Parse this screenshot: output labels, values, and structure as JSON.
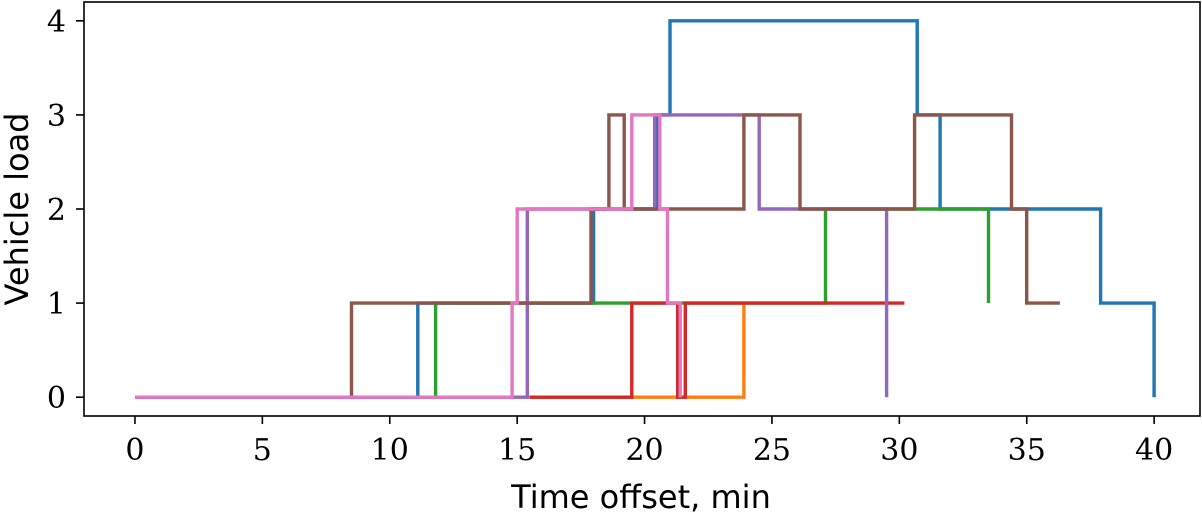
{
  "chart_data": {
    "type": "line",
    "step": true,
    "xlabel": "Time offset, min",
    "ylabel": "Vehicle load",
    "xlim": [
      -2.0,
      41.8
    ],
    "ylim": [
      -0.2,
      4.2
    ],
    "xticks": [
      0,
      5,
      10,
      15,
      20,
      25,
      30,
      35,
      40
    ],
    "yticks": [
      0,
      1,
      2,
      3,
      4
    ],
    "grid": false,
    "legend": "none",
    "series": [
      {
        "color": "#1f77b4",
        "points": [
          [
            0,
            0
          ],
          [
            11.1,
            0
          ],
          [
            11.1,
            1
          ],
          [
            18.0,
            1
          ],
          [
            18.0,
            2
          ],
          [
            20.5,
            2
          ],
          [
            20.5,
            3
          ],
          [
            21.0,
            3
          ],
          [
            21.0,
            4
          ],
          [
            30.7,
            4
          ],
          [
            30.7,
            3
          ],
          [
            31.6,
            3
          ],
          [
            31.6,
            2
          ],
          [
            37.9,
            2
          ],
          [
            37.9,
            1
          ],
          [
            40.0,
            1
          ],
          [
            40.0,
            0
          ]
        ]
      },
      {
        "color": "#ff7f0e",
        "points": [
          [
            0,
            0
          ],
          [
            23.9,
            0
          ],
          [
            23.9,
            1
          ]
        ]
      },
      {
        "color": "#2ca02c",
        "points": [
          [
            0,
            0
          ],
          [
            11.8,
            0
          ],
          [
            11.8,
            1
          ],
          [
            17.9,
            1
          ],
          [
            17.9,
            1
          ],
          [
            27.1,
            1
          ],
          [
            27.1,
            2
          ],
          [
            33.5,
            2
          ],
          [
            33.5,
            1
          ]
        ]
      },
      {
        "color": "#d62728",
        "points": [
          [
            15.5,
            0
          ],
          [
            19.5,
            0
          ],
          [
            19.5,
            1
          ],
          [
            21.3,
            1
          ],
          [
            21.3,
            0
          ],
          [
            21.6,
            0
          ],
          [
            21.6,
            1
          ],
          [
            30.2,
            1
          ]
        ]
      },
      {
        "color": "#9467bd",
        "points": [
          [
            0,
            0
          ],
          [
            15.4,
            0
          ],
          [
            15.4,
            2
          ],
          [
            20.4,
            2
          ],
          [
            20.4,
            3
          ],
          [
            24.5,
            3
          ],
          [
            24.5,
            2
          ],
          [
            29.5,
            2
          ],
          [
            29.5,
            0
          ]
        ]
      },
      {
        "color": "#8c564b",
        "points": [
          [
            8.5,
            0
          ],
          [
            8.5,
            1
          ],
          [
            17.9,
            1
          ],
          [
            17.9,
            2
          ],
          [
            18.6,
            2
          ],
          [
            18.6,
            3
          ],
          [
            19.2,
            3
          ],
          [
            19.2,
            2
          ],
          [
            23.9,
            2
          ],
          [
            23.9,
            3
          ],
          [
            26.1,
            3
          ],
          [
            26.1,
            2
          ],
          [
            30.6,
            2
          ],
          [
            30.6,
            3
          ],
          [
            34.4,
            3
          ],
          [
            34.4,
            2
          ],
          [
            35.0,
            2
          ],
          [
            35.0,
            1
          ],
          [
            36.3,
            1
          ]
        ]
      },
      {
        "color": "#e377c2",
        "points": [
          [
            0,
            0
          ],
          [
            14.8,
            0
          ],
          [
            14.8,
            1
          ],
          [
            15.0,
            1
          ],
          [
            15.0,
            2
          ],
          [
            19.5,
            2
          ],
          [
            19.5,
            3
          ],
          [
            20.6,
            3
          ],
          [
            20.6,
            2
          ],
          [
            20.9,
            2
          ],
          [
            20.9,
            1
          ],
          [
            21.4,
            1
          ],
          [
            21.4,
            0
          ]
        ]
      }
    ]
  }
}
